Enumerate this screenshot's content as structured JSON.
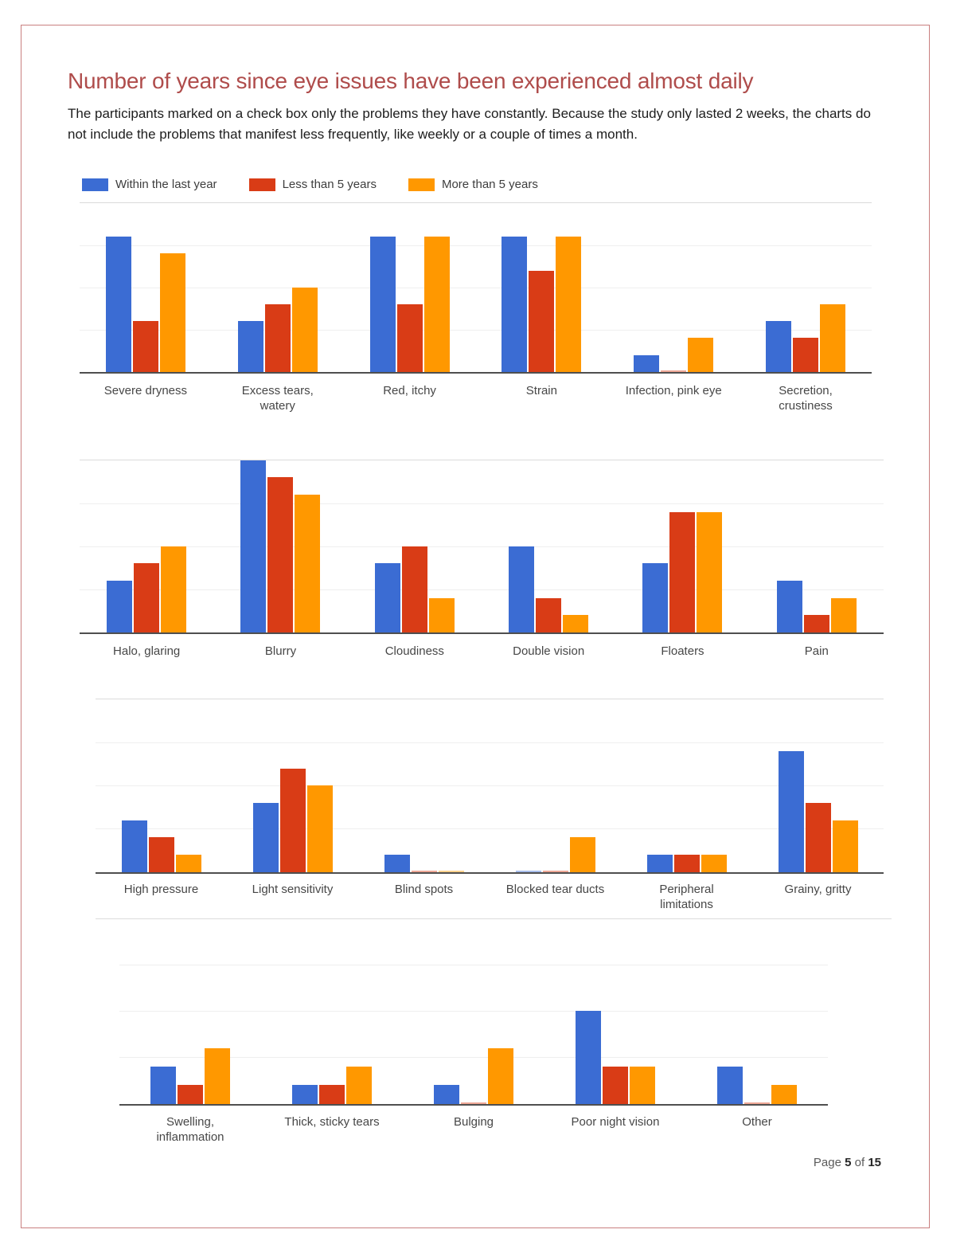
{
  "page": {
    "title": "Number of years since eye issues have been experienced almost daily",
    "description": "The participants marked on a check box only the problems they have constantly. Because the study only lasted 2 weeks, the charts do not include the problems that manifest less frequently, like weekly or a couple of times a month.",
    "footer": {
      "prefix": "Page",
      "page": "5",
      "of": "of",
      "total": "15"
    }
  },
  "colors": {
    "title": "#AF4C4B",
    "page_border": "#C97F7F",
    "series_blue": "#3B6CD3",
    "series_red": "#D93C16",
    "series_orange": "#FF9800",
    "gridline": "#EFEFEF",
    "axis_baseline": "#4F4F4F"
  },
  "legend": [
    {
      "label": "Within the last year",
      "color": "#3B6CD3"
    },
    {
      "label": "Less than 5 years",
      "color": "#D93C16"
    },
    {
      "label": "More than 5 years",
      "color": "#FF9800"
    }
  ],
  "chart_data": [
    {
      "type": "bar",
      "title": "",
      "categories": [
        "Severe dryness",
        "Excess tears,\nwatery",
        "Red, itchy",
        "Strain",
        "Infection, pink eye",
        "Secretion,\ncrustiness"
      ],
      "series": [
        {
          "name": "Within the last year",
          "color": "#3B6CD3",
          "values": [
            8,
            3,
            8,
            8,
            1,
            3
          ]
        },
        {
          "name": "Less than 5 years",
          "color": "#D93C16",
          "values": [
            3,
            4,
            4,
            6,
            0,
            2
          ]
        },
        {
          "name": "More than 5 years",
          "color": "#FF9800",
          "values": [
            7,
            5,
            8,
            8,
            2,
            4
          ]
        }
      ],
      "ylim": [
        0,
        10
      ],
      "yticks": [
        0,
        2.5,
        5,
        7.5,
        10
      ],
      "grid": true,
      "tick_labels_shown": false,
      "legend_position": "top"
    },
    {
      "type": "bar",
      "title": "",
      "categories": [
        "Halo, glaring",
        "Blurry",
        "Cloudiness",
        "Double vision",
        "Floaters",
        "Pain"
      ],
      "series": [
        {
          "name": "Within the last year",
          "color": "#3B6CD3",
          "values": [
            3,
            10,
            4,
            5,
            4,
            3
          ]
        },
        {
          "name": "Less than 5 years",
          "color": "#D93C16",
          "values": [
            4,
            9,
            5,
            2,
            7,
            1
          ]
        },
        {
          "name": "More than 5 years",
          "color": "#FF9800",
          "values": [
            5,
            8,
            2,
            1,
            7,
            2
          ]
        }
      ],
      "ylim": [
        0,
        10
      ],
      "yticks": [
        0,
        2.5,
        5,
        7.5,
        10
      ],
      "grid": true,
      "tick_labels_shown": false,
      "legend_position": "none"
    },
    {
      "type": "bar",
      "title": "",
      "categories": [
        "High pressure",
        "Light sensitivity",
        "Blind spots",
        "Blocked tear ducts",
        "Peripheral\nlimitations",
        "Grainy, gritty"
      ],
      "series": [
        {
          "name": "Within the last year",
          "color": "#3B6CD3",
          "values": [
            3,
            4,
            1,
            0,
            1,
            7
          ]
        },
        {
          "name": "Less than 5 years",
          "color": "#D93C16",
          "values": [
            2,
            6,
            0,
            0,
            1,
            4
          ]
        },
        {
          "name": "More than 5 years",
          "color": "#FF9800",
          "values": [
            1,
            5,
            0,
            2,
            1,
            3
          ]
        }
      ],
      "ylim": [
        0,
        10
      ],
      "yticks": [
        0,
        2.5,
        5,
        7.5,
        10
      ],
      "grid": true,
      "tick_labels_shown": false,
      "legend_position": "none"
    },
    {
      "type": "bar",
      "title": "",
      "categories": [
        "Swelling,\ninflammation",
        "Thick, sticky tears",
        "Bulging",
        "Poor night vision",
        "Other"
      ],
      "series": [
        {
          "name": "Within the last year",
          "color": "#3B6CD3",
          "values": [
            2,
            1,
            1,
            5,
            2
          ]
        },
        {
          "name": "Less than 5 years",
          "color": "#D93C16",
          "values": [
            1,
            1,
            0,
            2,
            0
          ]
        },
        {
          "name": "More than 5 years",
          "color": "#FF9800",
          "values": [
            3,
            2,
            3,
            2,
            1
          ]
        }
      ],
      "ylim": [
        0,
        10
      ],
      "yticks": [
        0,
        2.5,
        5,
        7.5,
        10
      ],
      "grid": true,
      "tick_labels_shown": false,
      "legend_position": "none"
    }
  ]
}
